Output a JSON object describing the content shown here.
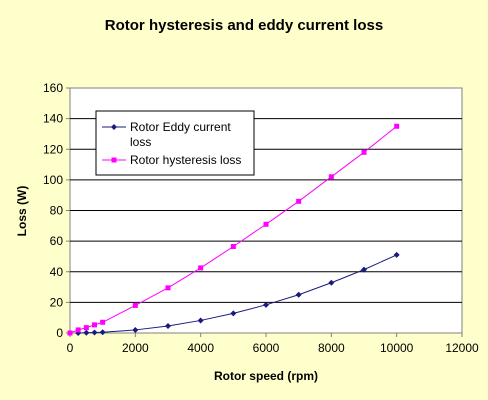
{
  "chart_data": {
    "type": "line",
    "title": "Rotor hysteresis and eddy current loss",
    "xlabel": "Rotor speed (rpm)",
    "ylabel": "Loss (W)",
    "xlim": [
      0,
      12000
    ],
    "ylim": [
      0,
      160
    ],
    "x_ticks": [
      0,
      2000,
      4000,
      6000,
      8000,
      10000,
      12000
    ],
    "y_ticks": [
      0,
      20,
      40,
      60,
      80,
      100,
      120,
      140,
      160
    ],
    "grid": "horizontal",
    "legend_position": "top-left",
    "series": [
      {
        "name": "Rotor Eddy current loss",
        "legend_lines": [
          "Rotor Eddy current",
          "loss"
        ],
        "color": "#1a1a80",
        "marker": "diamond",
        "x": [
          250,
          500,
          750,
          1000,
          2000,
          3000,
          4000,
          5000,
          6000,
          7000,
          8000,
          9000,
          10000
        ],
        "y": [
          0.03,
          0.13,
          0.3,
          0.5,
          2.0,
          4.6,
          8.2,
          12.8,
          18.4,
          25.0,
          32.8,
          41.4,
          51.0
        ]
      },
      {
        "name": "Rotor hysteresis loss",
        "legend_lines": [
          "Rotor hysteresis loss"
        ],
        "color": "#ff00ff",
        "marker": "square",
        "x": [
          0,
          250,
          500,
          750,
          1000,
          2000,
          3000,
          4000,
          5000,
          6000,
          7000,
          8000,
          9000,
          10000
        ],
        "y": [
          0,
          2,
          3.5,
          5.3,
          7,
          18,
          29.5,
          42.5,
          56.5,
          71,
          86,
          102,
          118,
          135
        ]
      }
    ]
  }
}
